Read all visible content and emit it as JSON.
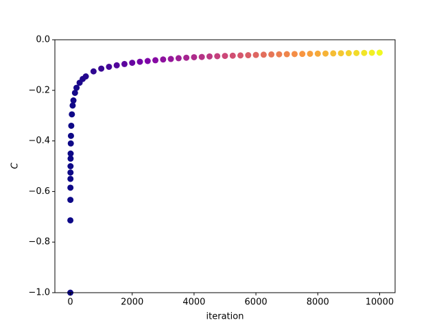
{
  "chart_data": {
    "type": "scatter",
    "x_label": "iteration",
    "y_label": "C",
    "colormap": "plasma",
    "x": [
      0,
      1,
      2,
      3,
      4,
      5,
      6,
      8,
      10,
      15,
      20,
      30,
      50,
      75,
      100,
      150,
      200,
      300,
      400,
      500,
      750,
      1000,
      1250,
      1500,
      1750,
      2000,
      2250,
      2500,
      2750,
      3000,
      3250,
      3500,
      3750,
      4000,
      4250,
      4500,
      4750,
      5000,
      5250,
      5500,
      5750,
      6000,
      6250,
      6500,
      6750,
      7000,
      7250,
      7500,
      7750,
      8000,
      8250,
      8500,
      8750,
      9000,
      9250,
      9500,
      9750,
      10000
    ],
    "values": [
      -1,
      -0.714,
      -0.633,
      -0.585,
      -0.55,
      -0.525,
      -0.5,
      -0.47,
      -0.45,
      -0.41,
      -0.38,
      -0.34,
      -0.295,
      -0.26,
      -0.24,
      -0.21,
      -0.19,
      -0.17,
      -0.155,
      -0.145,
      -0.125,
      -0.114,
      -0.107,
      -0.101,
      -0.096,
      -0.091,
      -0.087,
      -0.084,
      -0.081,
      -0.078,
      -0.076,
      -0.073,
      -0.071,
      -0.069,
      -0.068,
      -0.066,
      -0.065,
      -0.064,
      -0.063,
      -0.062,
      -0.061,
      -0.06,
      -0.059,
      -0.058,
      -0.0575,
      -0.057,
      -0.0565,
      -0.056,
      -0.0555,
      -0.055,
      -0.0545,
      -0.054,
      -0.0535,
      -0.053,
      -0.0525,
      -0.052,
      -0.0515,
      -0.051
    ],
    "xlim": [
      -500,
      10500
    ],
    "ylim": [
      -1,
      0
    ],
    "xticks": [
      0,
      2000,
      4000,
      6000,
      8000,
      10000
    ],
    "yticks": [
      {
        "value": -1,
        "label": "−1.0"
      },
      {
        "value": -0.8,
        "label": "−0.8"
      },
      {
        "value": -0.6,
        "label": "−0.6"
      },
      {
        "value": -0.4,
        "label": "−0.4"
      },
      {
        "value": -0.2,
        "label": "−0.2"
      },
      {
        "value": 0,
        "label": "0.0"
      }
    ]
  }
}
